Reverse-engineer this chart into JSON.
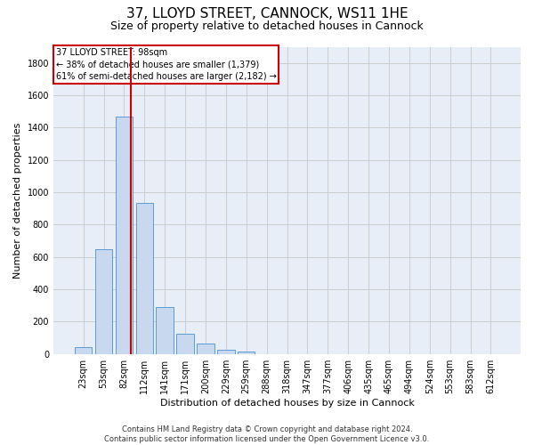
{
  "title_line1": "37, LLOYD STREET, CANNOCK, WS11 1HE",
  "title_line2": "Size of property relative to detached houses in Cannock",
  "xlabel": "Distribution of detached houses by size in Cannock",
  "ylabel": "Number of detached properties",
  "footnote": "Contains HM Land Registry data © Crown copyright and database right 2024.\nContains public sector information licensed under the Open Government Licence v3.0.",
  "bin_labels": [
    "23sqm",
    "53sqm",
    "82sqm",
    "112sqm",
    "141sqm",
    "171sqm",
    "200sqm",
    "229sqm",
    "259sqm",
    "288sqm",
    "318sqm",
    "347sqm",
    "377sqm",
    "406sqm",
    "435sqm",
    "465sqm",
    "494sqm",
    "524sqm",
    "553sqm",
    "583sqm",
    "612sqm"
  ],
  "bar_values": [
    40,
    650,
    1470,
    935,
    290,
    125,
    65,
    25,
    15,
    0,
    0,
    0,
    0,
    0,
    0,
    0,
    0,
    0,
    0,
    0,
    0
  ],
  "bar_color": "#c8d9ef",
  "bar_edge_color": "#5b9bd5",
  "vline_pos": 2.35,
  "vline_color": "#cc0000",
  "annotation_text": "37 LLOYD STREET: 98sqm\n← 38% of detached houses are smaller (1,379)\n61% of semi-detached houses are larger (2,182) →",
  "annotation_box_color": "#cc0000",
  "ylim": [
    0,
    1900
  ],
  "yticks": [
    0,
    200,
    400,
    600,
    800,
    1000,
    1200,
    1400,
    1600,
    1800
  ],
  "grid_color": "#cccccc",
  "bg_color": "#e8eef8",
  "title_fontsize": 11,
  "subtitle_fontsize": 9,
  "ylabel_fontsize": 8,
  "xlabel_fontsize": 8,
  "tick_fontsize": 7,
  "annot_fontsize": 7,
  "footnote_fontsize": 6
}
